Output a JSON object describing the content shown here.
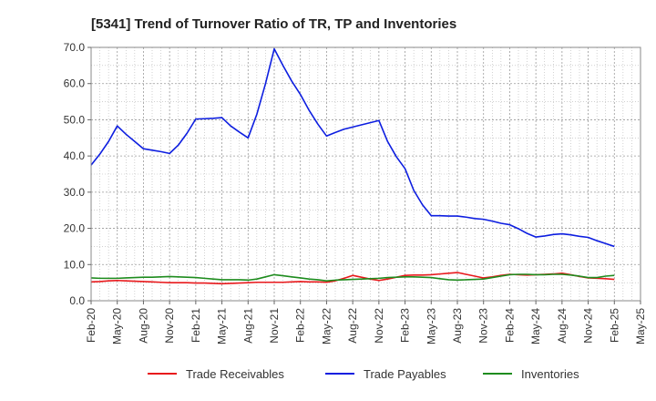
{
  "chart_data": {
    "type": "line",
    "title": "[5341]  Trend of Turnover Ratio of TR, TP and Inventories",
    "xlabel": "",
    "ylabel": "",
    "ylim": [
      0,
      70
    ],
    "yticks": [
      "0.0",
      "10.0",
      "20.0",
      "30.0",
      "40.0",
      "50.0",
      "60.0",
      "70.0"
    ],
    "xticks": [
      "Feb-20",
      "May-20",
      "Aug-20",
      "Nov-20",
      "Feb-21",
      "May-21",
      "Aug-21",
      "Nov-21",
      "Feb-22",
      "May-22",
      "Aug-22",
      "Nov-22",
      "Feb-23",
      "May-23",
      "Aug-23",
      "Nov-23",
      "Feb-24",
      "May-24",
      "Aug-24",
      "Nov-24",
      "Feb-25",
      "May-25"
    ],
    "grid": true,
    "legend_position": "bottom",
    "months": [
      "2020-02",
      "2020-03",
      "2020-04",
      "2020-05",
      "2020-06",
      "2020-07",
      "2020-08",
      "2020-09",
      "2020-10",
      "2020-11",
      "2020-12",
      "2021-01",
      "2021-02",
      "2021-03",
      "2021-04",
      "2021-05",
      "2021-06",
      "2021-07",
      "2021-08",
      "2021-09",
      "2021-10",
      "2021-11",
      "2021-12",
      "2022-01",
      "2022-02",
      "2022-03",
      "2022-04",
      "2022-05",
      "2022-06",
      "2022-07",
      "2022-08",
      "2022-09",
      "2022-10",
      "2022-11",
      "2022-12",
      "2023-01",
      "2023-02",
      "2023-03",
      "2023-04",
      "2023-05",
      "2023-06",
      "2023-07",
      "2023-08",
      "2023-09",
      "2023-10",
      "2023-11",
      "2023-12",
      "2024-01",
      "2024-02",
      "2024-03",
      "2024-04",
      "2024-05",
      "2024-06",
      "2024-07",
      "2024-08",
      "2024-09",
      "2024-10",
      "2024-11",
      "2024-12",
      "2025-01",
      "2025-02"
    ],
    "series": [
      {
        "name": "Trade Receivables",
        "color": "#e8191c",
        "values": [
          5.2,
          5.3,
          5.5,
          5.6,
          5.5,
          5.4,
          5.3,
          5.2,
          5.1,
          5.0,
          5.0,
          5.0,
          4.9,
          4.9,
          4.8,
          4.7,
          4.8,
          4.9,
          5.0,
          5.1,
          5.1,
          5.1,
          5.1,
          5.2,
          5.3,
          5.2,
          5.2,
          5.1,
          5.5,
          6.2,
          7.0,
          6.5,
          6.0,
          5.6,
          6.0,
          6.5,
          7.0,
          7.1,
          7.1,
          7.2,
          7.4,
          7.6,
          7.8,
          7.3,
          6.8,
          6.3,
          6.6,
          7.0,
          7.3,
          7.2,
          7.1,
          7.2,
          7.3,
          7.4,
          7.6,
          7.2,
          6.7,
          6.3,
          6.2,
          6.1,
          5.9
        ]
      },
      {
        "name": "Trade Payables",
        "color": "#0d1ee0",
        "values": [
          37.5,
          40.5,
          44,
          48.3,
          46,
          44,
          42,
          41.6,
          41.2,
          40.7,
          43,
          46.3,
          50.2,
          50.3,
          50.4,
          50.6,
          48.3,
          46.6,
          45,
          51.5,
          60,
          69.6,
          65,
          60.7,
          57,
          52.6,
          48.8,
          45.5,
          46.5,
          47.4,
          48,
          48.6,
          49.2,
          49.8,
          44,
          39.8,
          36.5,
          30.5,
          26.5,
          23.5,
          23.5,
          23.4,
          23.4,
          23.1,
          22.7,
          22.5,
          22,
          21.4,
          21,
          19.9,
          18.6,
          17.6,
          17.9,
          18.3,
          18.5,
          18.2,
          17.8,
          17.5,
          16.6,
          15.8,
          15.0
        ]
      },
      {
        "name": "Inventories",
        "color": "#1e8c1e",
        "values": [
          6.3,
          6.2,
          6.2,
          6.2,
          6.3,
          6.4,
          6.5,
          6.5,
          6.6,
          6.7,
          6.6,
          6.5,
          6.4,
          6.2,
          6.0,
          5.8,
          5.8,
          5.8,
          5.7,
          6.0,
          6.6,
          7.2,
          6.9,
          6.6,
          6.3,
          6.0,
          5.8,
          5.5,
          5.7,
          5.8,
          5.9,
          6.0,
          6.1,
          6.2,
          6.4,
          6.5,
          6.6,
          6.6,
          6.5,
          6.4,
          6.1,
          5.8,
          5.7,
          5.8,
          5.9,
          6.0,
          6.4,
          6.8,
          7.2,
          7.3,
          7.3,
          7.2,
          7.2,
          7.3,
          7.3,
          7.1,
          6.8,
          6.4,
          6.4,
          6.8,
          7.0
        ]
      }
    ]
  }
}
